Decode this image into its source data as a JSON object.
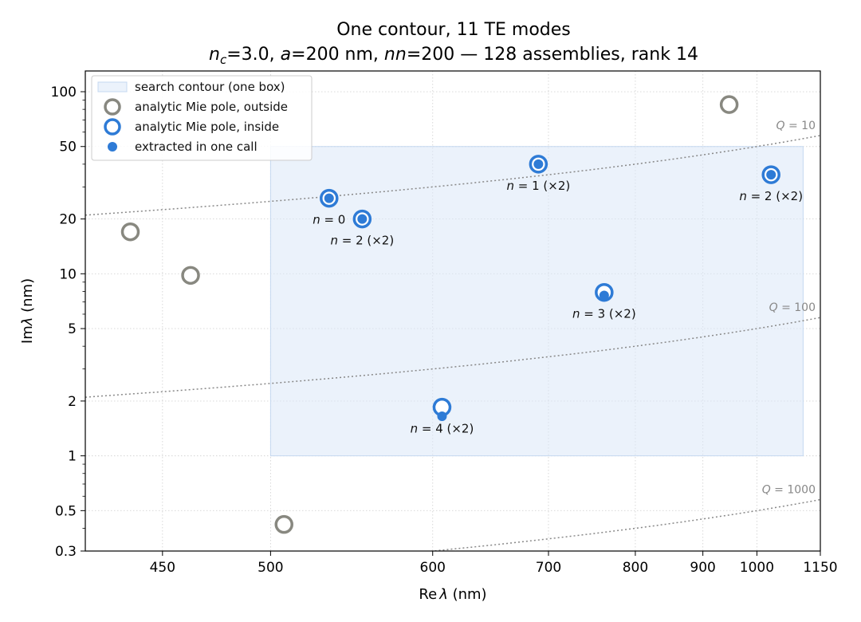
{
  "chart_data": {
    "type": "scatter",
    "title": "One contour, 11 TE modes",
    "subtitle_parts": {
      "nc_sym": "n",
      "nc_sub": "c",
      "nc_val": "=3.0, ",
      "a_sym": "a",
      "a_val": "=200 nm, ",
      "nn_sym": "nn",
      "nn_val": "=200 — 128 assemblies, rank 14"
    },
    "xlabel_re": "Re",
    "xlabel_lambda": "λ",
    "xlabel_unit": " (nm)",
    "ylabel_im": "Im",
    "ylabel_lambda": "λ",
    "ylabel_unit": " (nm)",
    "x_scale": "reciprocal",
    "y_scale": "log",
    "xlim": [
      420,
      1150
    ],
    "ylim": [
      0.3,
      130
    ],
    "grid": true,
    "x_ticks": [
      {
        "value": 450,
        "label": "450"
      },
      {
        "value": 500,
        "label": "500"
      },
      {
        "value": 600,
        "label": "600"
      },
      {
        "value": 700,
        "label": "700"
      },
      {
        "value": 800,
        "label": "800"
      },
      {
        "value": 900,
        "label": "900"
      },
      {
        "value": 1000,
        "label": "1000"
      },
      {
        "value": 1150,
        "label": "1150"
      }
    ],
    "y_ticks": [
      {
        "value": 0.3,
        "label": "0.3"
      },
      {
        "value": 0.5,
        "label": "0.5"
      },
      {
        "value": 1,
        "label": "1"
      },
      {
        "value": 2,
        "label": "2"
      },
      {
        "value": 5,
        "label": "5"
      },
      {
        "value": 10,
        "label": "10"
      },
      {
        "value": 20,
        "label": "20"
      },
      {
        "value": 50,
        "label": "50"
      },
      {
        "value": 100,
        "label": "100"
      }
    ],
    "contour": {
      "x": [
        500,
        1105
      ],
      "y": [
        1,
        50
      ],
      "color": "#dbe8f8",
      "edge": "#c5d8f0"
    },
    "q_lines": [
      {
        "name": "Q = 10",
        "q": 10
      },
      {
        "name": "Q = 100",
        "q": 100
      },
      {
        "name": "Q = 1000",
        "q": 1000
      }
    ],
    "legend": {
      "position": "top-left",
      "entries": [
        {
          "label": "search contour (one box)",
          "kind": "box"
        },
        {
          "label": "analytic Mie pole, outside",
          "kind": "outside"
        },
        {
          "label": "analytic Mie pole, inside",
          "kind": "inside"
        },
        {
          "label": "extracted in one call",
          "kind": "extracted"
        }
      ]
    },
    "colors": {
      "outside": "#888880",
      "inside": "#2e7bd6",
      "extracted": "#2e7bd6",
      "qline": "#888888"
    },
    "series": [
      {
        "name": "analytic Mie pole, outside",
        "points": [
          {
            "x": 437,
            "y": 17
          },
          {
            "x": 462,
            "y": 9.8
          },
          {
            "x": 507,
            "y": 0.42
          },
          {
            "x": 946,
            "y": 85
          }
        ]
      },
      {
        "name": "analytic Mie pole, inside",
        "points": [
          {
            "x": 532,
            "y": 26
          },
          {
            "x": 552,
            "y": 20
          },
          {
            "x": 607,
            "y": 1.85
          },
          {
            "x": 690,
            "y": 40
          },
          {
            "x": 761,
            "y": 7.9
          },
          {
            "x": 1030,
            "y": 35
          }
        ]
      },
      {
        "name": "extracted in one call",
        "points": [
          {
            "x": 532,
            "y": 26
          },
          {
            "x": 552,
            "y": 20
          },
          {
            "x": 607,
            "y": 1.65
          },
          {
            "x": 690,
            "y": 40
          },
          {
            "x": 761,
            "y": 7.6
          },
          {
            "x": 1030,
            "y": 35
          }
        ]
      }
    ],
    "annotations": [
      {
        "n": "n",
        "text": " = 0",
        "x": 532,
        "y": 26
      },
      {
        "n": "n",
        "text": " = 2 (×2)",
        "x": 552,
        "y": 20
      },
      {
        "n": "n",
        "text": " = 1 (×2)",
        "x": 690,
        "y": 40
      },
      {
        "n": "n",
        "text": " = 2 (×2)",
        "x": 1030,
        "y": 35
      },
      {
        "n": "n",
        "text": " = 3 (×2)",
        "x": 761,
        "y": 7.9
      },
      {
        "n": "n",
        "text": " = 4 (×2)",
        "x": 607,
        "y": 1.85
      }
    ]
  }
}
